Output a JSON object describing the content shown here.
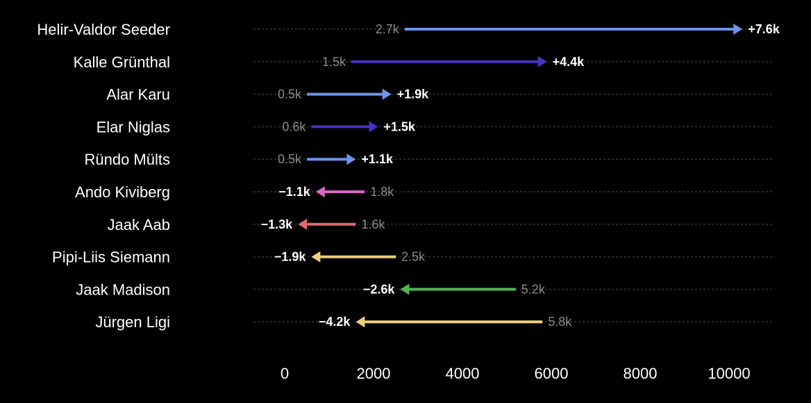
{
  "chart_data": {
    "type": "arrow-change",
    "xlim": [
      0,
      10500
    ],
    "x_ticks": [
      0,
      2000,
      4000,
      6000,
      8000,
      10000
    ],
    "x_tick_labels": [
      "0",
      "2000",
      "4000",
      "6000",
      "8000",
      "10000"
    ],
    "grid": false,
    "rows": [
      {
        "name": "Helir-Valdor Seeder",
        "start": 2700,
        "end": 10300,
        "start_label": "2.7k",
        "delta_label": "+7.6k",
        "color": "#6f93e8"
      },
      {
        "name": "Kalle Grünthal",
        "start": 1500,
        "end": 5900,
        "start_label": "1.5k",
        "delta_label": "+4.4k",
        "color": "#4434c4"
      },
      {
        "name": "Alar Karu",
        "start": 500,
        "end": 2400,
        "start_label": "0.5k",
        "delta_label": "+1.9k",
        "color": "#6f93e8"
      },
      {
        "name": "Elar Niglas",
        "start": 600,
        "end": 2100,
        "start_label": "0.6k",
        "delta_label": "+1.5k",
        "color": "#4434c4"
      },
      {
        "name": "Ründo Mülts",
        "start": 500,
        "end": 1600,
        "start_label": "0.5k",
        "delta_label": "+1.1k",
        "color": "#6f93e8"
      },
      {
        "name": "Ando Kiviberg",
        "start": 1800,
        "end": 700,
        "start_label": "1.8k",
        "delta_label": "−1.1k",
        "color": "#d866c8"
      },
      {
        "name": "Jaak Aab",
        "start": 1600,
        "end": 300,
        "start_label": "1.6k",
        "delta_label": "−1.3k",
        "color": "#e06a6a"
      },
      {
        "name": "Pipi-Liis Siemann",
        "start": 2500,
        "end": 600,
        "start_label": "2.5k",
        "delta_label": "−1.9k",
        "color": "#f0cf7a"
      },
      {
        "name": "Jaak Madison",
        "start": 5200,
        "end": 2600,
        "start_label": "5.2k",
        "delta_label": "−2.6k",
        "color": "#4fb54f"
      },
      {
        "name": "Jürgen Ligi",
        "start": 5800,
        "end": 1600,
        "start_label": "5.8k",
        "delta_label": "−4.2k",
        "color": "#f0cf7a"
      }
    ]
  }
}
